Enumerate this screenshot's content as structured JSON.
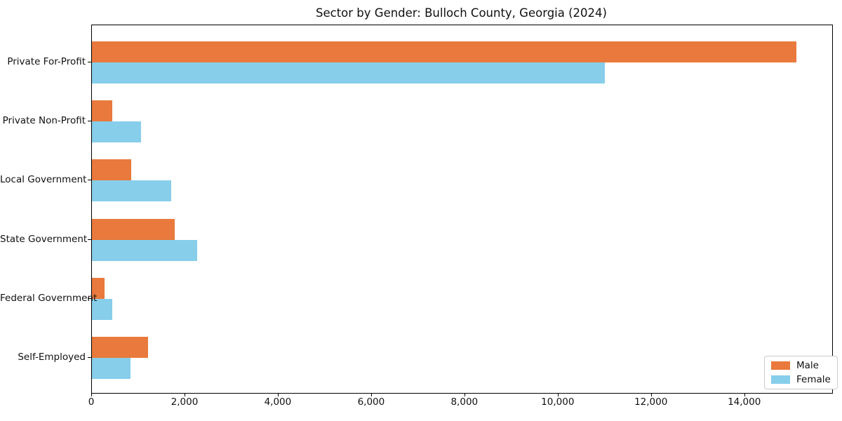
{
  "title": "Sector by Gender: Bulloch County, Georgia (2024)",
  "colors": {
    "male": "#e9793c",
    "female": "#87ceeb",
    "axis": "#000000",
    "text": "#111111",
    "legend_border": "#cccccc"
  },
  "chart_data": {
    "type": "bar",
    "orientation": "horizontal",
    "title": "Sector by Gender: Bulloch County, Georgia (2024)",
    "xlabel": "",
    "ylabel": "",
    "categories": [
      "Private For-Profit",
      "Private Non-Profit",
      "Local Government",
      "State Government",
      "Federal Government",
      "Self-Employed"
    ],
    "series": [
      {
        "name": "Male",
        "color": "#e9793c",
        "values": [
          15100,
          440,
          840,
          1780,
          270,
          1200
        ]
      },
      {
        "name": "Female",
        "color": "#87ceeb",
        "values": [
          11000,
          1050,
          1700,
          2250,
          430,
          830
        ]
      }
    ],
    "xlim": [
      0,
      15870
    ],
    "x_ticks": [
      0,
      2000,
      4000,
      6000,
      8000,
      10000,
      12000,
      14000
    ],
    "x_tick_labels": [
      "0",
      "2,000",
      "4,000",
      "6,000",
      "8,000",
      "10,000",
      "12,000",
      "14,000"
    ],
    "grid": false,
    "legend_position": "lower right"
  },
  "legend": {
    "items": [
      {
        "label": "Male",
        "color": "#e9793c"
      },
      {
        "label": "Female",
        "color": "#87ceeb"
      }
    ]
  }
}
